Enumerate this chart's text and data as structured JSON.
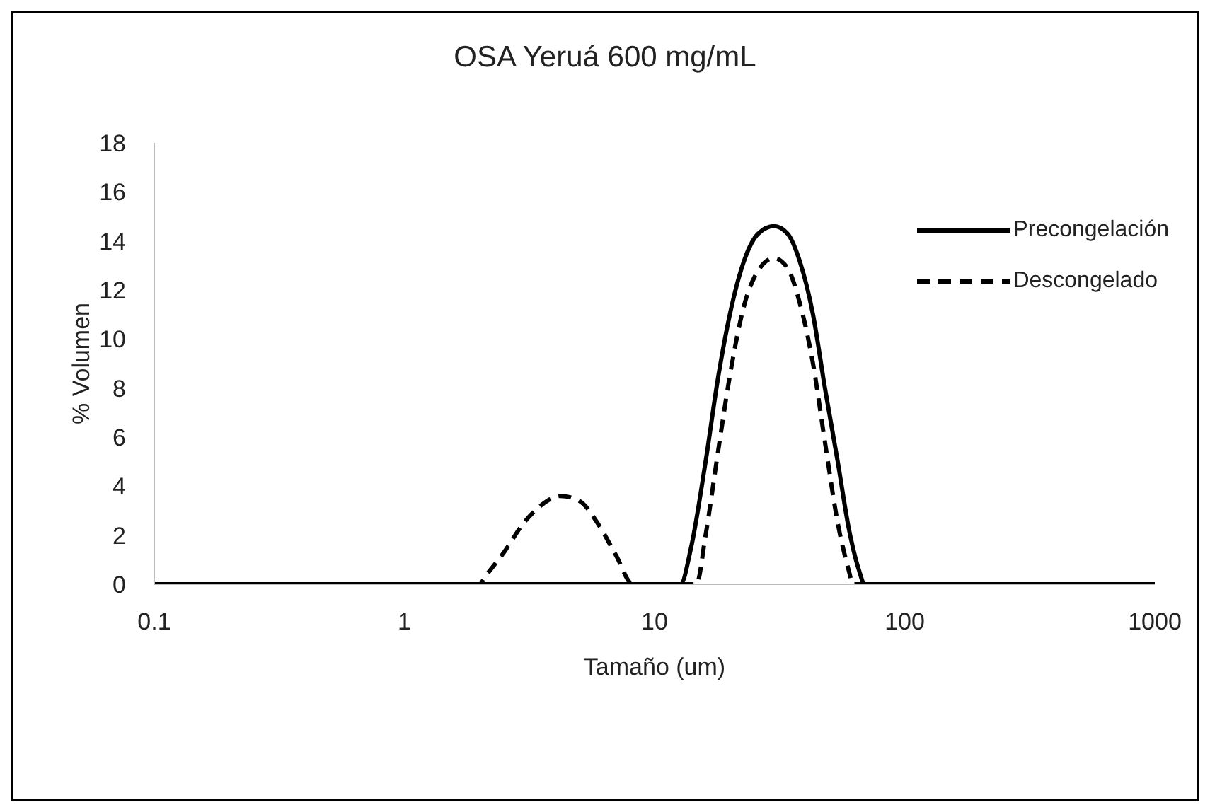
{
  "chart_data": {
    "type": "line",
    "title": "OSA Yeruá 600 mg/mL",
    "xlabel": "Tamaño (um)",
    "ylabel": "% Volumen",
    "log": "x",
    "xlim": [
      0.1,
      1000
    ],
    "xticks": [
      0.1,
      1,
      10,
      100,
      1000
    ],
    "ylim": [
      0,
      18
    ],
    "yticks": [
      0,
      2,
      4,
      6,
      8,
      10,
      12,
      14,
      16,
      18
    ],
    "grid": false,
    "legend": "top right",
    "marker": "none",
    "series": [
      {
        "name": "Precongelación",
        "color": "#000000",
        "line_style": "solid",
        "x": [
          0.1,
          12.7,
          14,
          16,
          18,
          20,
          23,
          26,
          30,
          34,
          38,
          43,
          48,
          54,
          60,
          66,
          69,
          1000
        ],
        "values": [
          0,
          0,
          1.5,
          5,
          8.5,
          11,
          13.3,
          14.3,
          14.6,
          14.3,
          13.2,
          11,
          8,
          5,
          2.2,
          0.5,
          0,
          0
        ]
      },
      {
        "name": "Descongelado",
        "color": "#000000",
        "line_style": "dashed",
        "x": [
          0.1,
          2,
          2.1,
          2.5,
          3,
          3.5,
          4.2,
          5,
          6,
          7,
          8.2,
          14.7,
          16,
          18,
          20,
          23,
          26,
          30,
          34,
          38,
          43,
          48,
          54,
          60,
          62,
          1000
        ],
        "values": [
          0,
          0,
          0.3,
          1.3,
          2.5,
          3.2,
          3.6,
          3.4,
          2.4,
          1.2,
          0,
          0,
          2,
          5.5,
          8.5,
          11.5,
          12.8,
          13.3,
          12.9,
          11.5,
          9,
          5.8,
          2.5,
          0.5,
          0,
          0
        ]
      }
    ]
  }
}
